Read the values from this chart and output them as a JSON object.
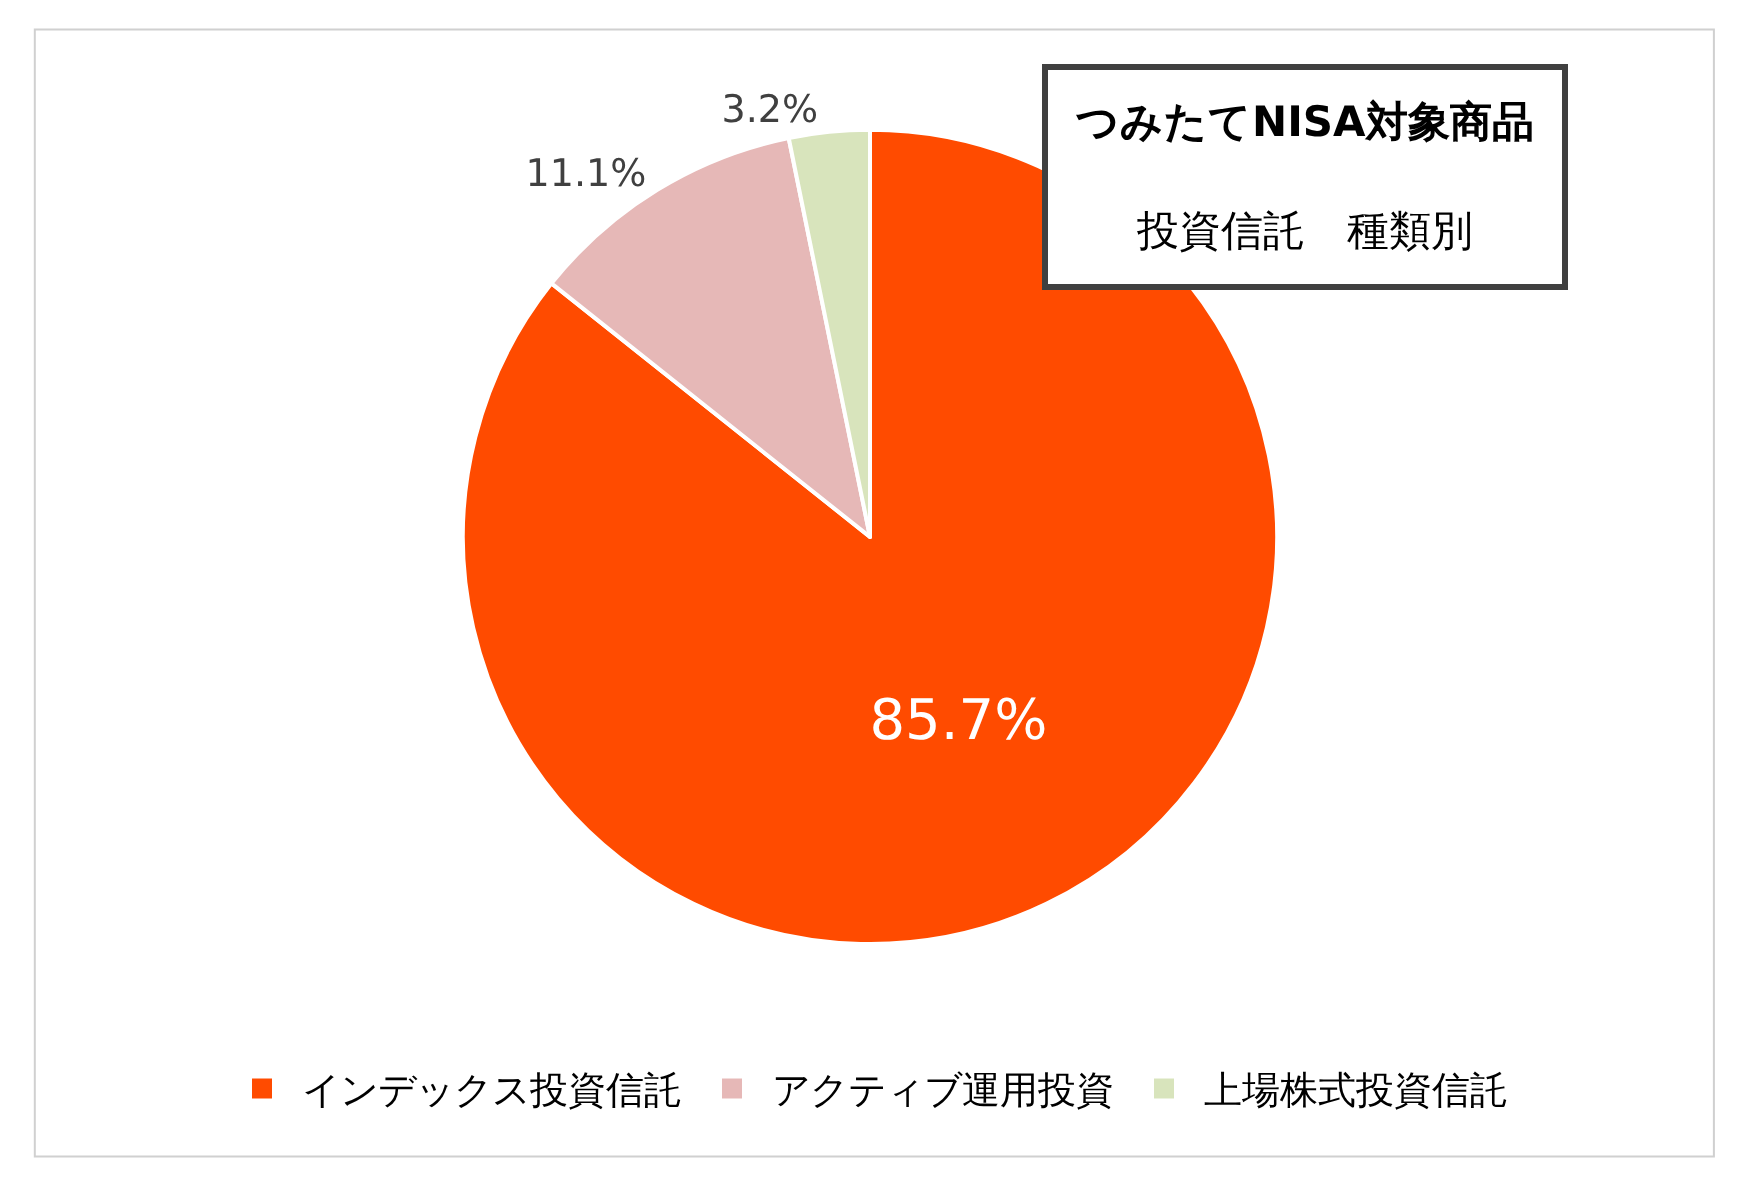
{
  "chart_data": {
    "type": "pie",
    "title": "つみたてNISA対象商品",
    "subtitle": "投資信託　種類別",
    "categories": [
      "インデックス投資信託",
      "アクティブ運用投資",
      "上場株式投資信託"
    ],
    "values": [
      85.7,
      11.1,
      3.2
    ],
    "colors": [
      "#ff4b00",
      "#e6b8b7",
      "#d8e4bc"
    ],
    "value_labels": [
      "85.7%",
      "11.1%",
      "3.2%"
    ],
    "legend": "bottom"
  }
}
